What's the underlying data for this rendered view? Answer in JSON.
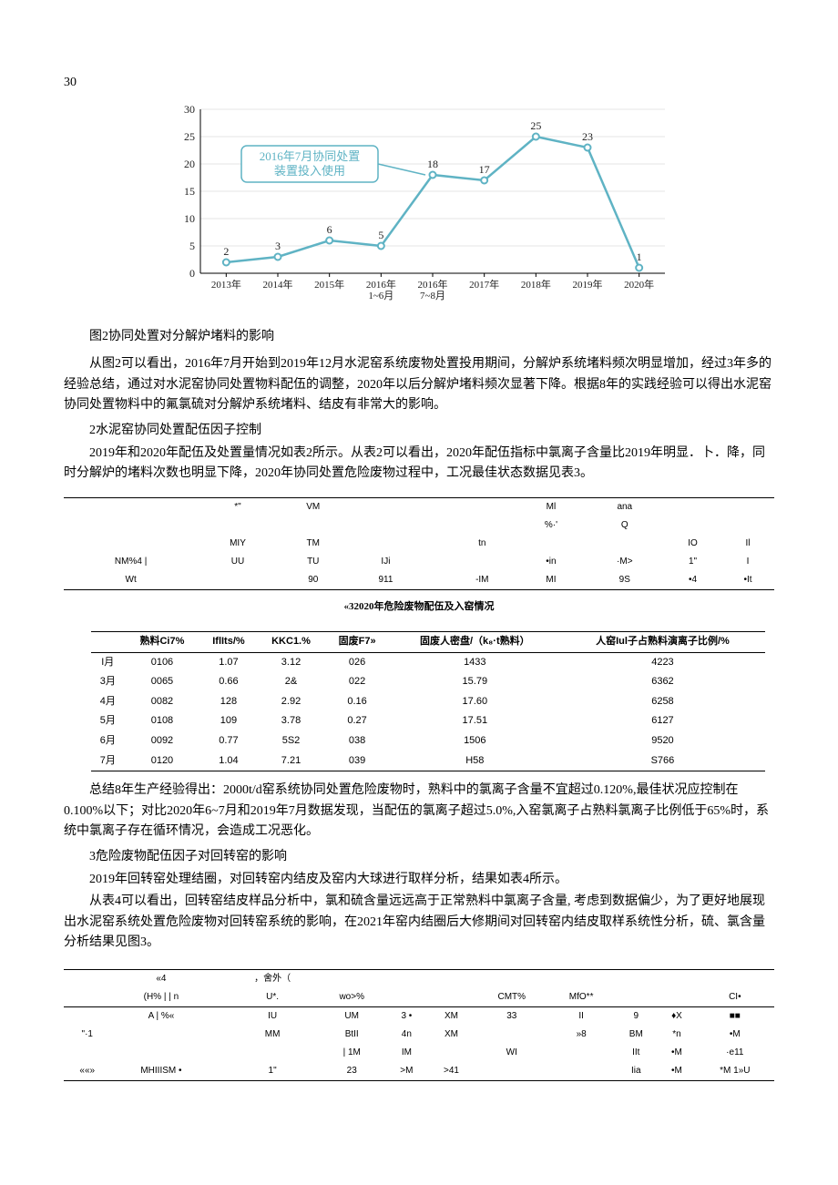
{
  "page_number": "30",
  "chart": {
    "type": "line",
    "title_caption": "图2协同处置对分解炉堵料的影响",
    "callout_text_l1": "2016年7月协同处置",
    "callout_text_l2": "装置投入使用",
    "line_color": "#5fb3c4",
    "marker_color": "#5fb3c4",
    "background_color": "#ffffff",
    "grid_color": "#cccccc",
    "ylim_min": 0,
    "ylim_max": 30,
    "ytick_step": 5,
    "categories": [
      "2013年",
      "2014年",
      "2015年",
      "2016年\n1~6月",
      "2016年\n7~8月",
      "2017年",
      "2018年",
      "2019年",
      "2020年"
    ],
    "values": [
      2,
      3,
      6,
      5,
      18,
      17,
      25,
      23,
      1
    ],
    "label_fontsize": 12
  },
  "para1": "从图2可以看出，2016年7月开始到2019年12月水泥窑系统废物处置投用期间，分解炉系统堵料频次明显增加，经过3年多的经验总结，通过对水泥窑协同处置物料配伍的调整，2020年以后分解炉堵料频次显著下降。根据8年的实践经验可以得出水泥窑协同处置物料中的氟氯硫对分解炉系统堵料、结皮有非常大的影响。",
  "section2_title": "2水泥窑协同处置配伍因子控制",
  "para2": "2019年和2020年配伍及处置量情况如表2所示。从表2可以看出，2020年配伍指标中氯离子含量比2019年明显．卜．降，同时分解炉的堵料次数也明显下降，2020年协同处置危险废物过程中，工况最佳状态数据见表3。",
  "table2": {
    "row1": [
      "",
      "*\"",
      "VM",
      "",
      "",
      "",
      "Ml",
      "ana",
      "",
      ""
    ],
    "row1b": [
      "",
      "",
      "",
      "",
      "",
      "",
      "<k>%·'",
      "Q",
      "",
      ""
    ],
    "row2": [
      "",
      "MIY",
      "TM",
      "",
      "",
      "tn",
      "",
      "",
      "IO",
      "Il"
    ],
    "row3": [
      "NM%4 |",
      "UU",
      "TU",
      "IJi",
      "",
      "",
      "•in",
      "·M>",
      "1\"",
      "I"
    ],
    "row4": [
      "Wt",
      "",
      "90",
      "911",
      "",
      "-IM",
      "MI",
      "9S",
      "•4",
      "•It"
    ]
  },
  "table3": {
    "title": "«32020年危险废物配伍及入窑情况",
    "header": [
      "",
      "熟料Ci7%",
      "IflIts/%",
      "KKC1.%",
      "固废F7»",
      "固废人密盘/（k₈·t熟料）",
      "人窑Iul子占熟料演离子比例/%"
    ],
    "rows": [
      [
        "I月",
        "0106",
        "1.07",
        "3.12",
        "026",
        "1433",
        "4223"
      ],
      [
        "3月",
        "0065",
        "0.66",
        "2&",
        "022",
        "15.79",
        "6362"
      ],
      [
        "4月",
        "0082",
        "128",
        "2.92",
        "0.16",
        "17.60",
        "6258"
      ],
      [
        "5月",
        "0108",
        "109",
        "3.78",
        "0.27",
        "17.51",
        "6127"
      ],
      [
        "6月",
        "0092",
        "0.77",
        "5S2",
        "038",
        "1506",
        "9520"
      ],
      [
        "7月",
        "0120",
        "1.04",
        "7.21",
        "039",
        "H58",
        "S766"
      ]
    ]
  },
  "para3": "总结8年生产经验得出：2000t/d窑系统协同处置危险废物时，熟料中的氯离子含量不宜超过0.120%,最佳状况应控制在0.100%以下；对比2020年6~7月和2019年7月数据发现，当配伍的氯离子超过5.0%,入窑氯离子占熟料氯离子比例低于65%时，系统中氯离子存在循环情况，会造成工况恶化。",
  "section3_title": "3危险废物配伍因子对回转窑的影响",
  "para4": "2019年回转窑处理结圈，对回转窑内结皮及窑内大球进行取样分析，结果如表4所示。",
  "para5": "从表4可以看出，回转窑结皮样品分析中，氯和硫含量远远高于正常熟料中氯离子含量, 考虑到数据偏少，为了更好地展现出水泥窑系统处置危险废物对回转窑系统的影响，在2021年窑内结圈后大修期间对回转窑内结皮取样系统性分析，硫、氯含量分析结果见图3。",
  "table4": {
    "topline": [
      "",
      "«4",
      "",
      "，舍外（",
      "",
      "",
      "",
      "",
      "",
      "",
      "",
      ""
    ],
    "h1": [
      "",
      "(H% | | n",
      "",
      "U*.",
      "wo>%",
      "",
      "",
      "CMT%",
      "MfO**",
      "",
      "",
      "CI•"
    ],
    "r1": [
      "",
      "A | %«<T·3",
      "",
      "IU",
      "UM",
      "3 •",
      "XM",
      "33",
      "II",
      "9",
      "♦X",
      "■■"
    ],
    "r2": [
      "\"·1",
      "",
      "",
      "MM",
      "BtII",
      "4n",
      "XM",
      "",
      "»8",
      "BM",
      "*n",
      "•M"
    ],
    "r3": [
      "",
      "",
      "",
      "",
      "| 1M",
      "IM",
      "",
      "WI",
      "",
      "IIt",
      "•M",
      "·e11"
    ],
    "r4": [
      "««»",
      "MHIIISM  •",
      "",
      "1\"",
      "23",
      ">M",
      ">41",
      "",
      "",
      "Iia",
      "•M",
      "*M   1»U"
    ]
  }
}
